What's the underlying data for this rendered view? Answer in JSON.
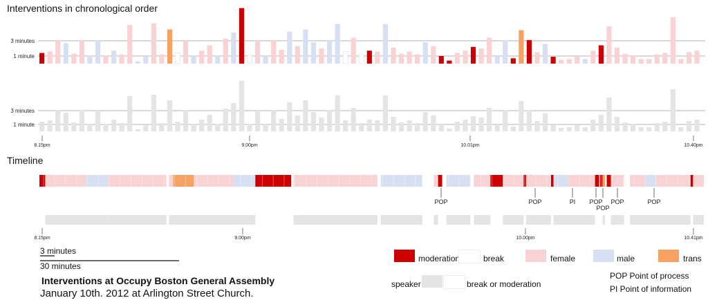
{
  "headings": {
    "intervention_title": "Interventions in chronological order",
    "timeline_title": "Timeline"
  },
  "colors": {
    "moderation": "#cc0000",
    "break": "#ffffff",
    "female": "#f9d2d3",
    "male": "#d6e0f2",
    "trans": "#f7a262",
    "speaker": "#e4e4e4",
    "gridline": "#9a9a9a"
  },
  "chart_data": {
    "type": "bar",
    "title": "Interventions in chronological order",
    "y_ticks": [
      "3 minutes",
      "1 minute"
    ],
    "y_tick_values": [
      3,
      1
    ],
    "ylim": [
      0,
      8
    ],
    "x_tick_labels": [
      "8.15pm",
      "9.00pm",
      "10.01pm",
      "10.40pm"
    ],
    "categories": [
      "moderation",
      "break",
      "female",
      "male",
      "trans"
    ],
    "durations": [
      1.4,
      1.6,
      3.1,
      2.7,
      1.3,
      3.1,
      1.1,
      3.0,
      1.1,
      1.7,
      1.2,
      5.1,
      0.3,
      0.9,
      5.3,
      1.2,
      4.5,
      1.4,
      3.1,
      1.1,
      1.7,
      2.4,
      1.1,
      3.3,
      4.1,
      7.3,
      1.1,
      3.0,
      1.0,
      3.1,
      1.8,
      4.2,
      2.3,
      4.5,
      2.8,
      2.0,
      3.1,
      5.2,
      1.6,
      3.4,
      1.2,
      1.7,
      1.6,
      5.2,
      2.1,
      1.3,
      1.6,
      1.2,
      2.8,
      2.3,
      1.0,
      0.4,
      1.4,
      1.7,
      2.2,
      2.0,
      3.4,
      1.0,
      3.1,
      0.7,
      4.4,
      3.1,
      1.5,
      2.6,
      0.9,
      0.5,
      0.6,
      0.9,
      0.6,
      1.7,
      2.4,
      4.9,
      2.1,
      1.3,
      1.1,
      0.6,
      0.6,
      1.2,
      1.4,
      6.1,
      0.6,
      1.5,
      1.7
    ],
    "categories_per_bar": [
      "moderation",
      "female",
      "female",
      "male",
      "female",
      "female",
      "male",
      "male",
      "female",
      "male",
      "female",
      "female",
      "male",
      "male",
      "female",
      "female",
      "trans",
      "break",
      "female",
      "male",
      "female",
      "female",
      "male",
      "female",
      "male",
      "moderation",
      "break",
      "female",
      "male",
      "female",
      "female",
      "male",
      "female",
      "male",
      "male",
      "female",
      "male",
      "male",
      "break",
      "female",
      "break",
      "moderation",
      "female",
      "male",
      "female",
      "female",
      "female",
      "female",
      "male",
      "female",
      "moderation",
      "moderation",
      "female",
      "female",
      "moderation",
      "female",
      "female",
      "male",
      "male",
      "moderation",
      "trans",
      "moderation",
      "female",
      "male",
      "moderation",
      "female",
      "female",
      "female",
      "male",
      "female",
      "moderation",
      "female",
      "female",
      "female",
      "female",
      "female",
      "female",
      "female",
      "female",
      "female",
      "female",
      "female",
      "female"
    ],
    "timeline_segments": [
      {
        "category": "moderation",
        "start": 0,
        "end": 0.7
      },
      {
        "category": "female",
        "start": 0.7,
        "end": 5.6
      },
      {
        "category": "male",
        "start": 5.6,
        "end": 8.3
      },
      {
        "category": "female",
        "start": 8.3,
        "end": 15.3
      },
      {
        "category": "break",
        "start": 15.3,
        "end": 15.6
      },
      {
        "category": "female",
        "start": 15.6,
        "end": 16.1
      },
      {
        "category": "trans",
        "start": 16.1,
        "end": 18.6
      },
      {
        "category": "female",
        "start": 18.6,
        "end": 23.3
      },
      {
        "category": "male",
        "start": 23.3,
        "end": 26.0
      },
      {
        "category": "moderation",
        "start": 26.0,
        "end": 30.3
      },
      {
        "category": "break",
        "start": 30.3,
        "end": 30.6
      },
      {
        "category": "female",
        "start": 30.6,
        "end": 35.3
      },
      {
        "category": "female",
        "start": 35.3,
        "end": 40.7
      },
      {
        "category": "break",
        "start": 40.7,
        "end": 41.1
      },
      {
        "category": "male",
        "start": 41.1,
        "end": 46.1
      },
      {
        "category": "break",
        "start": 46.1,
        "end": 47.5
      },
      {
        "category": "female",
        "start": 47.5,
        "end": 48.0
      },
      {
        "category": "moderation",
        "start": 48.0,
        "end": 48.5
      },
      {
        "category": "break",
        "start": 48.5,
        "end": 49.0
      },
      {
        "category": "male",
        "start": 49.0,
        "end": 51.9
      },
      {
        "category": "break",
        "start": 51.9,
        "end": 52.3
      },
      {
        "category": "female",
        "start": 52.3,
        "end": 54.3
      },
      {
        "category": "moderation",
        "start": 54.3,
        "end": 55.8
      },
      {
        "category": "female",
        "start": 55.8,
        "end": 58.3
      },
      {
        "category": "moderation",
        "start": 58.3,
        "end": 58.6
      },
      {
        "category": "female",
        "start": 58.6,
        "end": 61.6
      },
      {
        "category": "moderation",
        "start": 61.6,
        "end": 61.9
      },
      {
        "category": "male",
        "start": 61.9,
        "end": 63.6
      },
      {
        "category": "female",
        "start": 63.6,
        "end": 66.9
      },
      {
        "category": "moderation",
        "start": 66.9,
        "end": 67.4
      },
      {
        "category": "moderation",
        "start": 67.5,
        "end": 67.8
      },
      {
        "category": "trans",
        "start": 67.8,
        "end": 68.1
      },
      {
        "category": "moderation",
        "start": 68.3,
        "end": 68.8
      },
      {
        "category": "female",
        "start": 68.8,
        "end": 70.4
      },
      {
        "category": "break",
        "start": 70.4,
        "end": 71.1
      },
      {
        "category": "female",
        "start": 71.1,
        "end": 73.0
      },
      {
        "category": "male",
        "start": 73.0,
        "end": 74.2
      },
      {
        "category": "female",
        "start": 74.2,
        "end": 78.4
      },
      {
        "category": "moderation",
        "start": 78.4,
        "end": 78.7
      },
      {
        "category": "female",
        "start": 78.7,
        "end": 80.0
      }
    ],
    "timeline_x_tick_labels": [
      "8.15pm",
      "9.00pm",
      "10.00pm",
      "10.41pm"
    ],
    "annotations": [
      "POP",
      "POP",
      "PI",
      "POP",
      "POP",
      "POP",
      "POP"
    ]
  },
  "legend": {
    "scale_3min": "3 minutes",
    "scale_30min": "30 minutes",
    "moderation": "moderation",
    "break": "break",
    "female": "female",
    "male": "male",
    "trans": "trans",
    "speaker": "speaker",
    "break_or_moderation": "break or moderation",
    "pop_def": "POP Point of process",
    "pi_def": "PI Point of information"
  },
  "footer": {
    "title": "Interventions at Occupy Boston General Assembly",
    "subtitle": "January 10th. 2012 at Arlington Street Church."
  }
}
